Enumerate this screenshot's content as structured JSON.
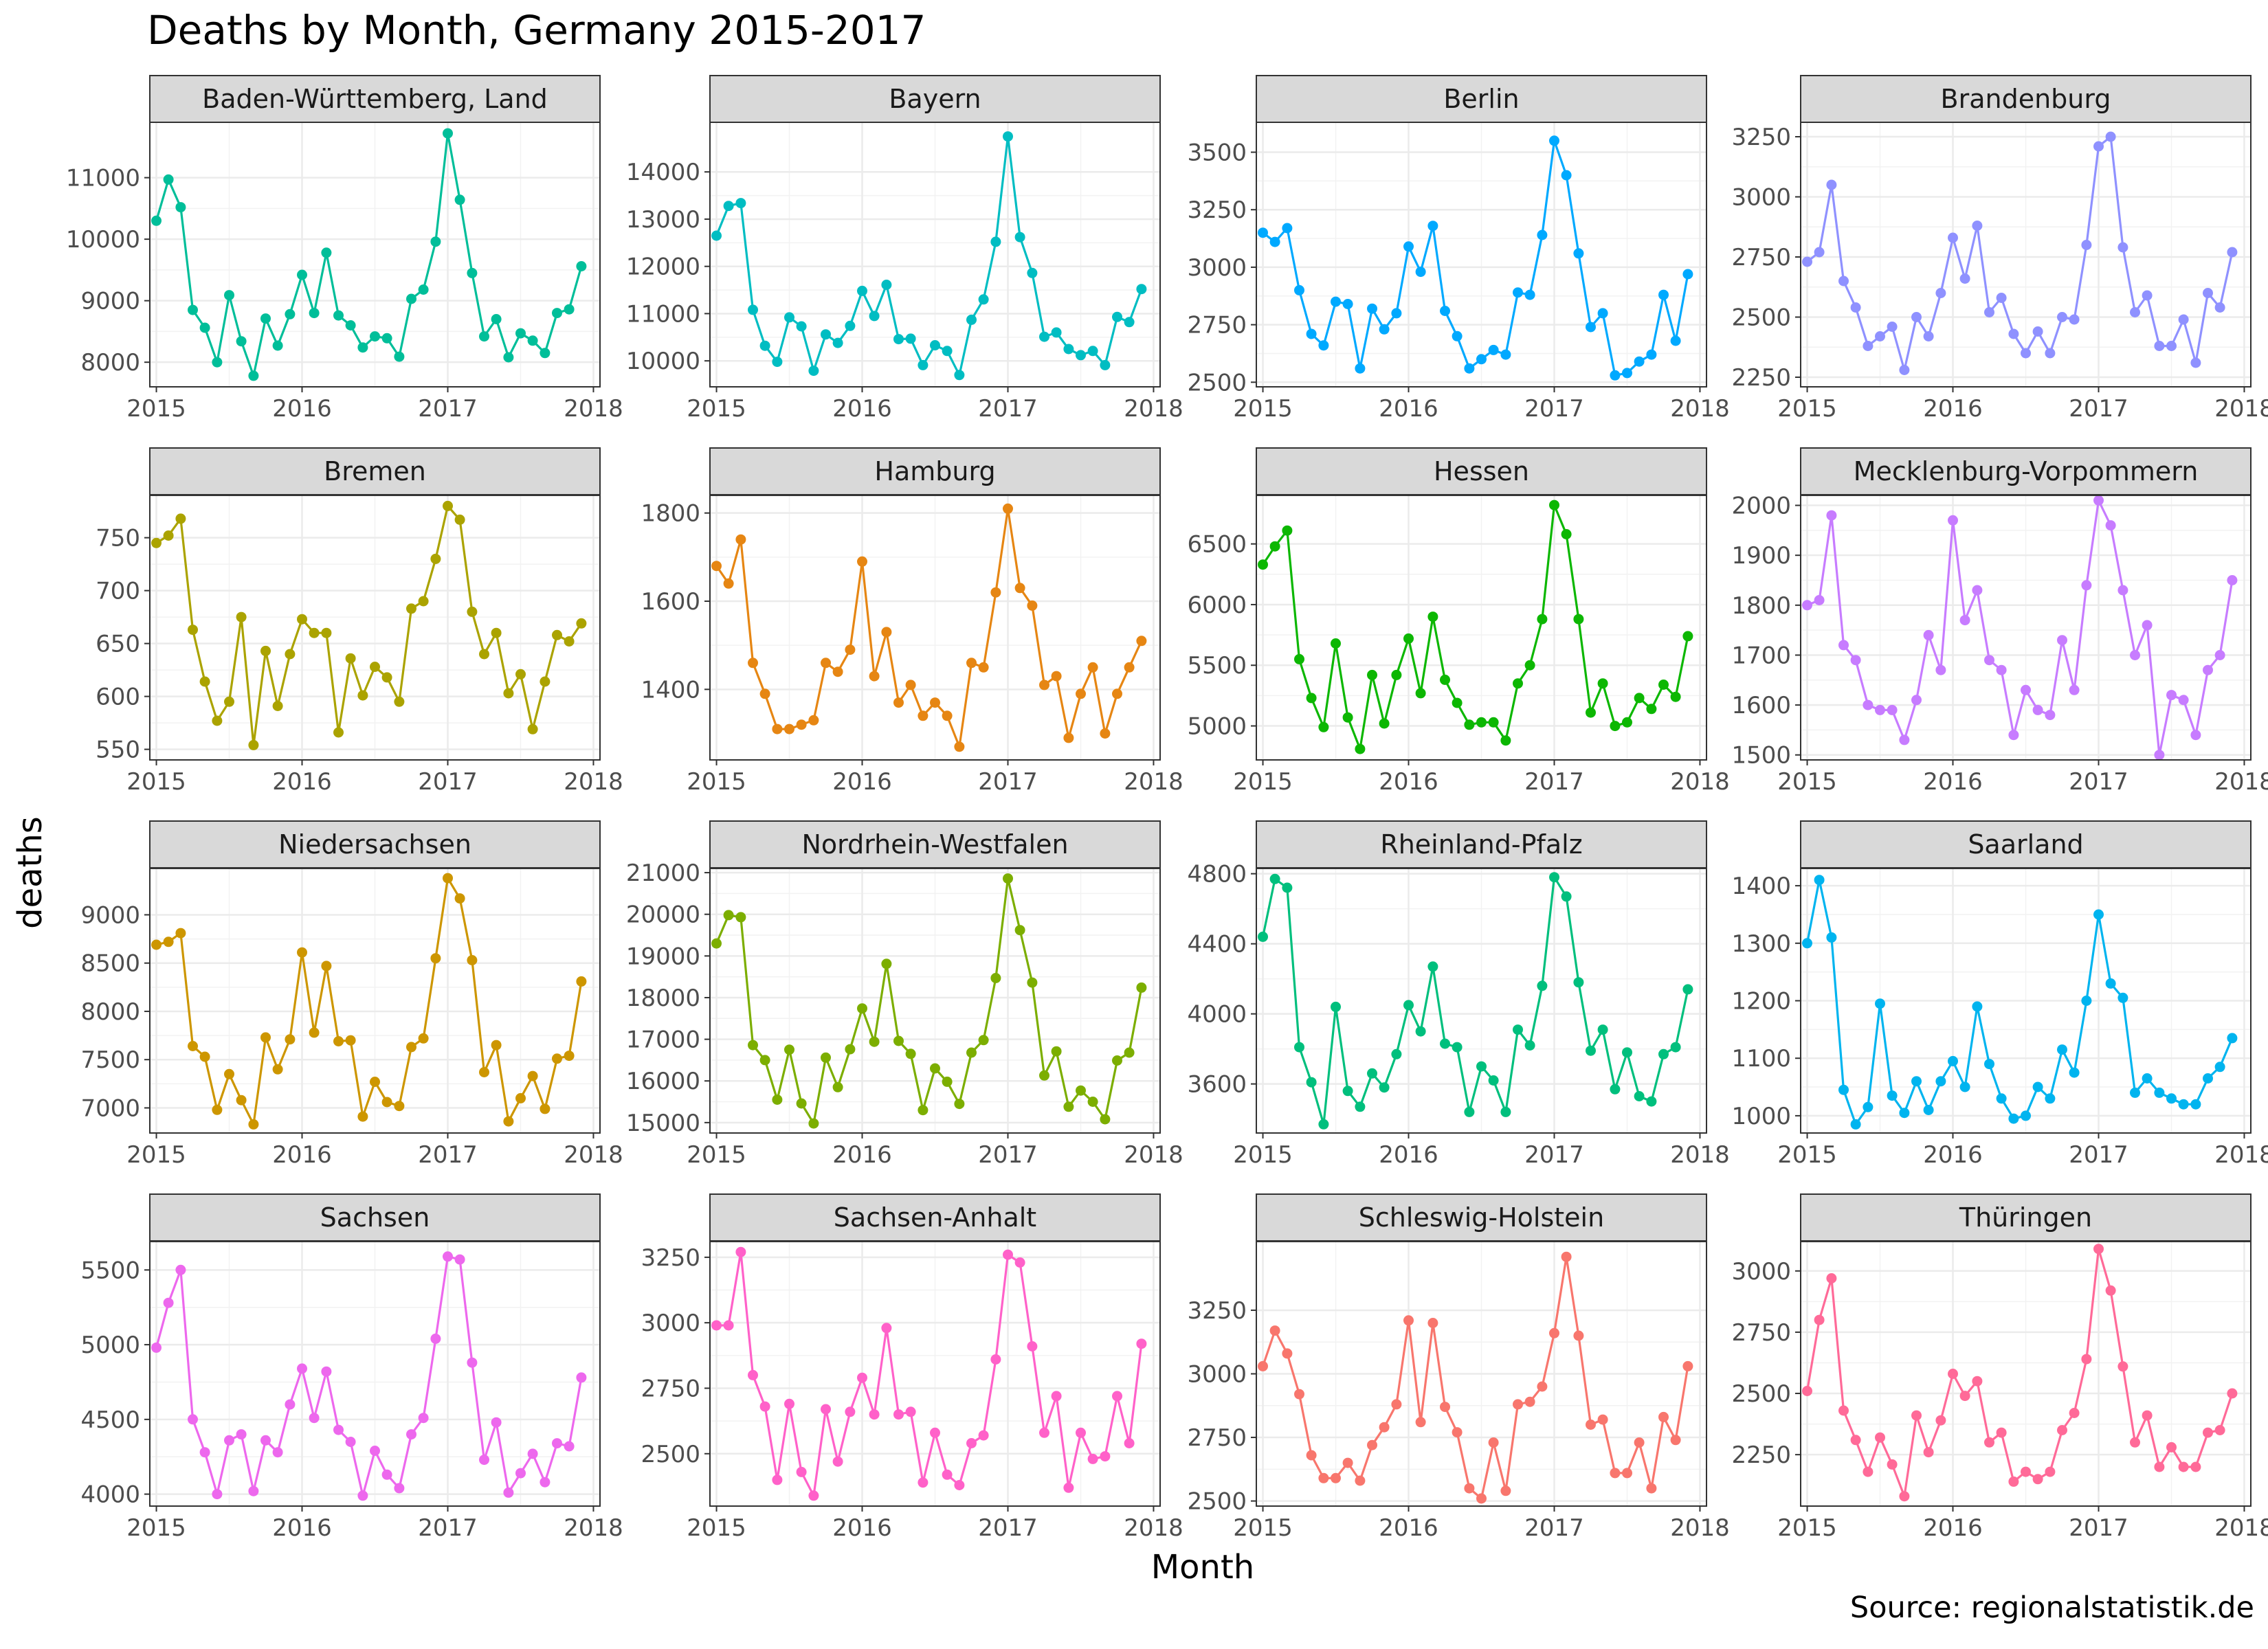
{
  "title": "Deaths by Month, Germany 2015-2017",
  "source": "Source: regionalstatistik.de",
  "chart_data": {
    "type": "line",
    "title": "Deaths by Month, Germany 2015-2017",
    "xlabel": "Month",
    "ylabel": "deaths",
    "x": [
      2015.0,
      2015.083,
      2015.167,
      2015.25,
      2015.333,
      2015.417,
      2015.5,
      2015.583,
      2015.667,
      2015.75,
      2015.833,
      2015.917,
      2016.0,
      2016.083,
      2016.167,
      2016.25,
      2016.333,
      2016.417,
      2016.5,
      2016.583,
      2016.667,
      2016.75,
      2016.833,
      2016.917,
      2017.0,
      2017.083,
      2017.167,
      2017.25,
      2017.333,
      2017.417,
      2017.5,
      2017.583,
      2017.667,
      2017.75,
      2017.833,
      2017.917
    ],
    "x_ticks": [
      2015,
      2016,
      2017,
      2018
    ],
    "x_tick_labels": [
      "2015",
      "2016",
      "2017",
      "2018"
    ],
    "xlim": [
      2014.955,
      2018.045
    ],
    "grid": true,
    "point_markers": true,
    "panels": [
      {
        "name": "Baden-Württemberg, Land",
        "color": "#00BE99",
        "y_ticks": [
          8000,
          9000,
          10000,
          11000
        ],
        "y_tick_labels": [
          "8000",
          "9000",
          "10000",
          "11000"
        ],
        "ylim": [
          7600,
          11900
        ],
        "values": [
          10300,
          10970,
          10520,
          8850,
          8560,
          8000,
          9090,
          8340,
          7780,
          8710,
          8270,
          8780,
          9420,
          8800,
          9780,
          8760,
          8600,
          8240,
          8420,
          8390,
          8090,
          9030,
          9180,
          9960,
          11720,
          10640,
          9450,
          8420,
          8700,
          8080,
          8470,
          8350,
          8150,
          8800,
          8860,
          9560
        ]
      },
      {
        "name": "Bayern",
        "color": "#00BDC2",
        "y_ticks": [
          10000,
          11000,
          12000,
          13000,
          14000
        ],
        "y_tick_labels": [
          "10000",
          "11000",
          "12000",
          "13000",
          "14000"
        ],
        "ylim": [
          9450,
          15050
        ],
        "values": [
          12650,
          13280,
          13340,
          11080,
          10320,
          9980,
          10920,
          10730,
          9790,
          10560,
          10380,
          10740,
          11480,
          10950,
          11610,
          10460,
          10470,
          9910,
          10330,
          10210,
          9700,
          10870,
          11300,
          12520,
          14750,
          12620,
          11860,
          10510,
          10600,
          10250,
          10120,
          10210,
          9910,
          10930,
          10820,
          11520
        ]
      },
      {
        "name": "Berlin",
        "color": "#00A9FF",
        "y_ticks": [
          2500,
          2750,
          3000,
          3250,
          3500
        ],
        "y_tick_labels": [
          "2500",
          "2750",
          "3000",
          "3250",
          "3500"
        ],
        "ylim": [
          2480,
          3630
        ],
        "values": [
          3150,
          3110,
          3170,
          2900,
          2710,
          2660,
          2850,
          2840,
          2560,
          2820,
          2730,
          2800,
          3090,
          2980,
          3180,
          2810,
          2700,
          2560,
          2600,
          2640,
          2620,
          2890,
          2880,
          3140,
          3550,
          3400,
          3060,
          2740,
          2800,
          2530,
          2540,
          2590,
          2620,
          2880,
          2680,
          2970
        ]
      },
      {
        "name": "Brandenburg",
        "color": "#8F91FF",
        "y_ticks": [
          2250,
          2500,
          2750,
          3000,
          3250
        ],
        "y_tick_labels": [
          "2250",
          "2500",
          "2750",
          "3000",
          "3250"
        ],
        "ylim": [
          2210,
          3310
        ],
        "values": [
          2730,
          2770,
          3050,
          2650,
          2540,
          2380,
          2420,
          2460,
          2280,
          2500,
          2420,
          2600,
          2830,
          2660,
          2880,
          2520,
          2580,
          2430,
          2350,
          2440,
          2350,
          2500,
          2490,
          2800,
          3210,
          3250,
          2790,
          2520,
          2590,
          2380,
          2380,
          2490,
          2310,
          2600,
          2540,
          2770
        ]
      },
      {
        "name": "Bremen",
        "color": "#ABA300",
        "y_ticks": [
          550,
          600,
          650,
          700,
          750
        ],
        "y_tick_labels": [
          "550",
          "600",
          "650",
          "700",
          "750"
        ],
        "ylim": [
          540,
          790
        ],
        "values": [
          745,
          752,
          768,
          663,
          614,
          577,
          595,
          675,
          554,
          643,
          591,
          640,
          673,
          660,
          660,
          566,
          636,
          601,
          628,
          618,
          595,
          683,
          690,
          730,
          780,
          767,
          680,
          640,
          660,
          603,
          621,
          569,
          614,
          658,
          652,
          669
        ]
      },
      {
        "name": "Hamburg",
        "color": "#E68613",
        "y_ticks": [
          1400,
          1600,
          1800
        ],
        "y_tick_labels": [
          "1400",
          "1600",
          "1800"
        ],
        "ylim": [
          1240,
          1840
        ],
        "values": [
          1680,
          1640,
          1740,
          1460,
          1390,
          1310,
          1310,
          1320,
          1330,
          1460,
          1440,
          1490,
          1690,
          1430,
          1530,
          1370,
          1410,
          1340,
          1370,
          1340,
          1270,
          1460,
          1450,
          1620,
          1810,
          1630,
          1590,
          1410,
          1430,
          1290,
          1390,
          1450,
          1300,
          1390,
          1450,
          1510
        ]
      },
      {
        "name": "Hessen",
        "color": "#0CB702",
        "y_ticks": [
          5000,
          5500,
          6000,
          6500
        ],
        "y_tick_labels": [
          "5000",
          "5500",
          "6000",
          "6500"
        ],
        "ylim": [
          4720,
          6900
        ],
        "values": [
          6330,
          6480,
          6610,
          5550,
          5230,
          4990,
          5680,
          5070,
          4810,
          5420,
          5020,
          5420,
          5720,
          5270,
          5900,
          5380,
          5190,
          5010,
          5030,
          5030,
          4880,
          5350,
          5500,
          5880,
          6820,
          6580,
          5880,
          5110,
          5350,
          5000,
          5030,
          5230,
          5140,
          5340,
          5240,
          5740
        ]
      },
      {
        "name": "Mecklenburg-Vorpommern",
        "color": "#C77CFF",
        "y_ticks": [
          1500,
          1600,
          1700,
          1800,
          1900,
          2000
        ],
        "y_tick_labels": [
          "1500",
          "1600",
          "1700",
          "1800",
          "1900",
          "2000"
        ],
        "ylim": [
          1490,
          2020
        ],
        "values": [
          1800,
          1810,
          1980,
          1720,
          1690,
          1600,
          1590,
          1590,
          1530,
          1610,
          1740,
          1670,
          1970,
          1770,
          1830,
          1690,
          1670,
          1540,
          1630,
          1590,
          1580,
          1730,
          1630,
          1840,
          2010,
          1960,
          1830,
          1700,
          1760,
          1500,
          1620,
          1610,
          1540,
          1670,
          1700,
          1850
        ]
      },
      {
        "name": "Niedersachsen",
        "color": "#CD9600",
        "y_ticks": [
          7000,
          7500,
          8000,
          8500,
          9000
        ],
        "y_tick_labels": [
          "7000",
          "7500",
          "8000",
          "8500",
          "9000"
        ],
        "ylim": [
          6740,
          9480
        ],
        "values": [
          8690,
          8720,
          8810,
          7640,
          7530,
          6980,
          7350,
          7080,
          6830,
          7730,
          7400,
          7710,
          8610,
          7780,
          8470,
          7690,
          7700,
          6910,
          7270,
          7060,
          7020,
          7630,
          7720,
          8550,
          9380,
          9170,
          8530,
          7370,
          7650,
          6860,
          7100,
          7330,
          6990,
          7510,
          7540,
          8310
        ]
      },
      {
        "name": "Nordrhein-Westfalen",
        "color": "#7CAE00",
        "y_ticks": [
          15000,
          16000,
          17000,
          18000,
          19000,
          20000,
          21000
        ],
        "y_tick_labels": [
          "15000",
          "16000",
          "17000",
          "18000",
          "19000",
          "20000",
          "21000"
        ],
        "ylim": [
          14750,
          21100
        ],
        "values": [
          19300,
          19980,
          19930,
          16860,
          16500,
          15550,
          16750,
          15460,
          14980,
          16560,
          15850,
          16760,
          17740,
          16940,
          18810,
          16960,
          16650,
          15300,
          16300,
          15980,
          15450,
          16680,
          16980,
          18470,
          20860,
          19620,
          18360,
          16130,
          16710,
          15380,
          15770,
          15500,
          15080,
          16490,
          16680,
          18240
        ]
      },
      {
        "name": "Rheinland-Pfalz",
        "color": "#00BF7D",
        "y_ticks": [
          3600,
          4000,
          4400,
          4800
        ],
        "y_tick_labels": [
          "3600",
          "4000",
          "4400",
          "4800"
        ],
        "ylim": [
          3320,
          4830
        ],
        "values": [
          4440,
          4770,
          4720,
          3810,
          3610,
          3370,
          4040,
          3560,
          3470,
          3660,
          3580,
          3770,
          4050,
          3900,
          4270,
          3830,
          3810,
          3440,
          3700,
          3620,
          3440,
          3910,
          3820,
          4160,
          4780,
          4670,
          4180,
          3790,
          3910,
          3570,
          3780,
          3530,
          3500,
          3770,
          3810,
          4140
        ]
      },
      {
        "name": "Saarland",
        "color": "#00B4EF",
        "y_ticks": [
          1000,
          1100,
          1200,
          1300,
          1400
        ],
        "y_tick_labels": [
          "1000",
          "1100",
          "1200",
          "1300",
          "1400"
        ],
        "ylim": [
          970,
          1430
        ],
        "values": [
          1300,
          1410,
          1310,
          1045,
          985,
          1015,
          1195,
          1035,
          1005,
          1060,
          1010,
          1060,
          1095,
          1050,
          1190,
          1090,
          1030,
          995,
          1000,
          1050,
          1030,
          1115,
          1075,
          1200,
          1350,
          1230,
          1205,
          1040,
          1065,
          1040,
          1030,
          1020,
          1020,
          1065,
          1085,
          1135
        ]
      },
      {
        "name": "Sachsen",
        "color": "#ED68ED",
        "y_ticks": [
          4000,
          4500,
          5000,
          5500
        ],
        "y_tick_labels": [
          "4000",
          "4500",
          "5000",
          "5500"
        ],
        "ylim": [
          3920,
          5690
        ],
        "values": [
          4980,
          5280,
          5500,
          4500,
          4280,
          4000,
          4360,
          4400,
          4020,
          4360,
          4280,
          4600,
          4840,
          4510,
          4820,
          4430,
          4350,
          3990,
          4290,
          4130,
          4040,
          4400,
          4510,
          5040,
          5590,
          5570,
          4880,
          4230,
          4480,
          4010,
          4140,
          4270,
          4080,
          4340,
          4320,
          4780
        ]
      },
      {
        "name": "Sachsen-Anhalt",
        "color": "#FF61C9",
        "y_ticks": [
          2500,
          2750,
          3000,
          3250
        ],
        "y_tick_labels": [
          "2500",
          "2750",
          "3000",
          "3250"
        ],
        "ylim": [
          2300,
          3310
        ],
        "values": [
          2990,
          2990,
          3270,
          2800,
          2680,
          2400,
          2690,
          2430,
          2340,
          2670,
          2470,
          2660,
          2790,
          2650,
          2980,
          2650,
          2660,
          2390,
          2580,
          2420,
          2380,
          2540,
          2570,
          2860,
          3260,
          3230,
          2910,
          2580,
          2720,
          2370,
          2580,
          2480,
          2490,
          2720,
          2540,
          2920
        ]
      },
      {
        "name": "Schleswig-Holstein",
        "color": "#F8766D",
        "y_ticks": [
          2500,
          2750,
          3000,
          3250
        ],
        "y_tick_labels": [
          "2500",
          "2750",
          "3000",
          "3250"
        ],
        "ylim": [
          2480,
          3520
        ],
        "values": [
          3030,
          3170,
          3080,
          2920,
          2680,
          2590,
          2590,
          2650,
          2580,
          2720,
          2790,
          2880,
          3210,
          2810,
          3200,
          2870,
          2770,
          2550,
          2510,
          2730,
          2540,
          2880,
          2890,
          2950,
          3160,
          3460,
          3150,
          2800,
          2820,
          2610,
          2610,
          2730,
          2550,
          2830,
          2740,
          3030
        ]
      },
      {
        "name": "Thüringen",
        "color": "#FF6A98",
        "y_ticks": [
          2250,
          2500,
          2750,
          3000
        ],
        "y_tick_labels": [
          "2250",
          "2500",
          "2750",
          "3000"
        ],
        "ylim": [
          2040,
          3120
        ],
        "values": [
          2510,
          2800,
          2970,
          2430,
          2310,
          2180,
          2320,
          2210,
          2080,
          2410,
          2260,
          2390,
          2580,
          2490,
          2550,
          2300,
          2340,
          2140,
          2180,
          2150,
          2180,
          2350,
          2420,
          2640,
          3090,
          2920,
          2610,
          2300,
          2410,
          2200,
          2280,
          2200,
          2200,
          2340,
          2350,
          2500
        ]
      }
    ]
  }
}
